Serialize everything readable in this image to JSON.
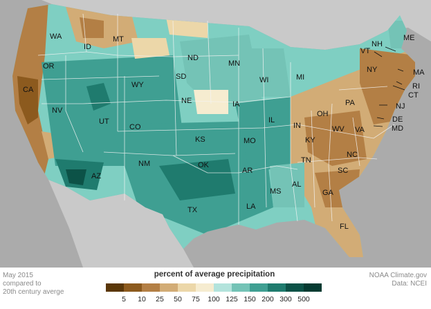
{
  "map": {
    "states": [
      {
        "abbr": "WA"
      },
      {
        "abbr": "OR"
      },
      {
        "abbr": "CA"
      },
      {
        "abbr": "ID"
      },
      {
        "abbr": "NV"
      },
      {
        "abbr": "MT"
      },
      {
        "abbr": "WY"
      },
      {
        "abbr": "UT"
      },
      {
        "abbr": "AZ"
      },
      {
        "abbr": "CO"
      },
      {
        "abbr": "NM"
      },
      {
        "abbr": "ND"
      },
      {
        "abbr": "SD"
      },
      {
        "abbr": "NE"
      },
      {
        "abbr": "KS"
      },
      {
        "abbr": "OK"
      },
      {
        "abbr": "TX"
      },
      {
        "abbr": "MN"
      },
      {
        "abbr": "IA"
      },
      {
        "abbr": "MO"
      },
      {
        "abbr": "AR"
      },
      {
        "abbr": "LA"
      },
      {
        "abbr": "WI"
      },
      {
        "abbr": "IL"
      },
      {
        "abbr": "MI"
      },
      {
        "abbr": "IN"
      },
      {
        "abbr": "OH"
      },
      {
        "abbr": "KY"
      },
      {
        "abbr": "TN"
      },
      {
        "abbr": "MS"
      },
      {
        "abbr": "AL"
      },
      {
        "abbr": "GA"
      },
      {
        "abbr": "FL"
      },
      {
        "abbr": "SC"
      },
      {
        "abbr": "NC"
      },
      {
        "abbr": "VA"
      },
      {
        "abbr": "WV"
      },
      {
        "abbr": "PA"
      },
      {
        "abbr": "NY"
      },
      {
        "abbr": "ME"
      },
      {
        "abbr": "NH"
      },
      {
        "abbr": "VT"
      },
      {
        "abbr": "MA"
      },
      {
        "abbr": "RI"
      },
      {
        "abbr": "CT"
      },
      {
        "abbr": "NJ"
      },
      {
        "abbr": "DE"
      },
      {
        "abbr": "MD"
      }
    ]
  },
  "footer": {
    "date_line1": "May 2015",
    "date_line2": "compared to",
    "date_line3": "20th century averge",
    "credit_line1": "NOAA Climate.gov",
    "credit_line2": "Data: NCEI"
  },
  "legend": {
    "title": "percent of average precipitation",
    "ticks": [
      "5",
      "10",
      "25",
      "50",
      "75",
      "100",
      "125",
      "150",
      "200",
      "300",
      "500"
    ],
    "colors": [
      "#5a3708",
      "#8c5a1e",
      "#b37f45",
      "#d2ac76",
      "#ecd7a9",
      "#f6ecd0",
      "#b3e3dc",
      "#74c3b6",
      "#3f9f92",
      "#1f7b6e",
      "#0c5247",
      "#053a31"
    ]
  },
  "colors": {
    "ocean": "#ababab",
    "dry_brown": "#b37f45",
    "light_tan": "#e6cfa0",
    "wet_teal": "#3f9f92",
    "light_teal": "#7fcfc2",
    "dark_teal": "#0c5247"
  }
}
